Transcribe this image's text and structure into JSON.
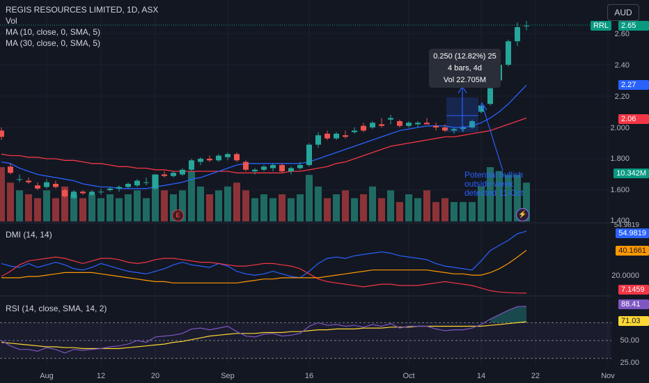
{
  "header": {
    "symbol_line": "REGIS RESOURCES LIMITED, 1D, ASX",
    "vol_label": "Vol",
    "ma10_label": "MA (10, close, 0, SMA, 5)",
    "ma30_label": "MA (30, close, 0, SMA, 5)",
    "currency": "AUD"
  },
  "colors": {
    "up": "#26a69a",
    "down": "#ef5350",
    "ma10": "#2962ff",
    "ma30": "#f23645",
    "adx": "#ff9800",
    "rsi": "#7e57c2",
    "rsi_ma": "#fdd835",
    "background": "#131722",
    "grid": "#1e222d"
  },
  "tags": {
    "rrl": "RRL",
    "last_price": "2.65",
    "ma10_value": "2.27",
    "ma30_value": "2.06",
    "vol_value": "10.342M",
    "dmi_plus": "54.9819",
    "adx_value": "40.1661",
    "dmi_minus": "7.1459",
    "rsi_value": "88.41",
    "rsi_ma_value": "71.03"
  },
  "price_axis": [
    "2.60",
    "2.40",
    "2.20",
    "2.000",
    "1.800",
    "1.600",
    "1.400"
  ],
  "dmi_pane": {
    "title": "DMI (14, 14)",
    "axis": [
      "54.9819",
      "20.0000"
    ],
    "top_label": "54.9819"
  },
  "rsi_pane": {
    "title": "RSI (14, close, SMA, 14, 2)",
    "axis": [
      "50.00",
      "25.00"
    ]
  },
  "x_labels": [
    {
      "text": "Aug",
      "idx": 5
    },
    {
      "text": "12",
      "idx": 11
    },
    {
      "text": "20",
      "idx": 17
    },
    {
      "text": "Sep",
      "idx": 25
    },
    {
      "text": "16",
      "idx": 34
    },
    {
      "text": "Oct",
      "idx": 45
    },
    {
      "text": "14",
      "idx": 53
    },
    {
      "text": "22",
      "idx": 59
    },
    {
      "text": "Nov",
      "idx": 67
    }
  ],
  "tooltip": {
    "line1": "0.250 (12.82%) 25",
    "line2": "4 bars, 4d",
    "line3": "Vol 22.705M"
  },
  "annotation": {
    "line1": "Potential bullish",
    "line2": "outside week",
    "line3": "detected 11-Oct"
  },
  "earnings_badge": "E",
  "chart_data": [
    {
      "type": "candlestick",
      "title": "REGIS RESOURCES LIMITED, 1D, ASX",
      "ylim": [
        1.4,
        2.7
      ],
      "candles": [
        {
          "o": 1.98,
          "h": 2.0,
          "l": 1.92,
          "c": 1.94
        },
        {
          "o": 1.75,
          "h": 1.77,
          "l": 1.7,
          "c": 1.71
        },
        {
          "o": 1.67,
          "h": 1.7,
          "l": 1.65,
          "c": 1.67
        },
        {
          "o": 1.66,
          "h": 1.68,
          "l": 1.64,
          "c": 1.65
        },
        {
          "o": 1.63,
          "h": 1.65,
          "l": 1.6,
          "c": 1.61
        },
        {
          "o": 1.62,
          "h": 1.67,
          "l": 1.61,
          "c": 1.65
        },
        {
          "o": 1.64,
          "h": 1.66,
          "l": 1.61,
          "c": 1.62
        },
        {
          "o": 1.6,
          "h": 1.61,
          "l": 1.55,
          "c": 1.56
        },
        {
          "o": 1.55,
          "h": 1.6,
          "l": 1.54,
          "c": 1.59
        },
        {
          "o": 1.59,
          "h": 1.6,
          "l": 1.57,
          "c": 1.58
        },
        {
          "o": 1.57,
          "h": 1.6,
          "l": 1.56,
          "c": 1.59
        },
        {
          "o": 1.59,
          "h": 1.61,
          "l": 1.57,
          "c": 1.59
        },
        {
          "o": 1.6,
          "h": 1.62,
          "l": 1.59,
          "c": 1.61
        },
        {
          "o": 1.61,
          "h": 1.63,
          "l": 1.59,
          "c": 1.62
        },
        {
          "o": 1.62,
          "h": 1.65,
          "l": 1.61,
          "c": 1.64
        },
        {
          "o": 1.63,
          "h": 1.67,
          "l": 1.62,
          "c": 1.66
        },
        {
          "o": 1.65,
          "h": 1.68,
          "l": 1.63,
          "c": 1.65
        },
        {
          "o": 1.61,
          "h": 1.7,
          "l": 1.6,
          "c": 1.7
        },
        {
          "o": 1.7,
          "h": 1.72,
          "l": 1.68,
          "c": 1.69
        },
        {
          "o": 1.69,
          "h": 1.72,
          "l": 1.68,
          "c": 1.71
        },
        {
          "o": 1.7,
          "h": 1.74,
          "l": 1.69,
          "c": 1.73
        },
        {
          "o": 1.73,
          "h": 1.8,
          "l": 1.72,
          "c": 1.79
        },
        {
          "o": 1.78,
          "h": 1.81,
          "l": 1.76,
          "c": 1.8
        },
        {
          "o": 1.8,
          "h": 1.82,
          "l": 1.78,
          "c": 1.79
        },
        {
          "o": 1.79,
          "h": 1.83,
          "l": 1.78,
          "c": 1.82
        },
        {
          "o": 1.81,
          "h": 1.84,
          "l": 1.79,
          "c": 1.83
        },
        {
          "o": 1.83,
          "h": 1.84,
          "l": 1.78,
          "c": 1.79
        },
        {
          "o": 1.78,
          "h": 1.79,
          "l": 1.72,
          "c": 1.73
        },
        {
          "o": 1.72,
          "h": 1.74,
          "l": 1.7,
          "c": 1.73
        },
        {
          "o": 1.73,
          "h": 1.76,
          "l": 1.72,
          "c": 1.75
        },
        {
          "o": 1.74,
          "h": 1.77,
          "l": 1.72,
          "c": 1.76
        },
        {
          "o": 1.76,
          "h": 1.77,
          "l": 1.71,
          "c": 1.72
        },
        {
          "o": 1.72,
          "h": 1.75,
          "l": 1.7,
          "c": 1.74
        },
        {
          "o": 1.74,
          "h": 1.78,
          "l": 1.73,
          "c": 1.76
        },
        {
          "o": 1.76,
          "h": 1.9,
          "l": 1.75,
          "c": 1.89
        },
        {
          "o": 1.89,
          "h": 1.97,
          "l": 1.87,
          "c": 1.95
        },
        {
          "o": 1.96,
          "h": 1.98,
          "l": 1.92,
          "c": 1.93
        },
        {
          "o": 1.93,
          "h": 1.97,
          "l": 1.92,
          "c": 1.96
        },
        {
          "o": 1.95,
          "h": 1.98,
          "l": 1.93,
          "c": 1.94
        },
        {
          "o": 1.97,
          "h": 2.0,
          "l": 1.96,
          "c": 1.98
        },
        {
          "o": 2.01,
          "h": 2.03,
          "l": 1.97,
          "c": 1.98
        },
        {
          "o": 2.0,
          "h": 2.04,
          "l": 1.99,
          "c": 2.03
        },
        {
          "o": 2.02,
          "h": 2.06,
          "l": 2.0,
          "c": 2.01
        },
        {
          "o": 2.05,
          "h": 2.08,
          "l": 2.02,
          "c": 2.06
        },
        {
          "o": 2.04,
          "h": 2.05,
          "l": 2.0,
          "c": 2.01
        },
        {
          "o": 2.01,
          "h": 2.04,
          "l": 2.0,
          "c": 2.03
        },
        {
          "o": 2.02,
          "h": 2.04,
          "l": 2.0,
          "c": 2.03
        },
        {
          "o": 2.03,
          "h": 2.06,
          "l": 2.02,
          "c": 2.02
        },
        {
          "o": 2.01,
          "h": 2.03,
          "l": 1.98,
          "c": 2.0
        },
        {
          "o": 2.0,
          "h": 2.02,
          "l": 1.97,
          "c": 1.98
        },
        {
          "o": 1.98,
          "h": 2.0,
          "l": 1.96,
          "c": 1.99
        },
        {
          "o": 1.99,
          "h": 2.01,
          "l": 1.97,
          "c": 2.0
        },
        {
          "o": 2.0,
          "h": 2.05,
          "l": 1.99,
          "c": 2.04
        },
        {
          "o": 2.1,
          "h": 2.15,
          "l": 2.09,
          "c": 2.14
        },
        {
          "o": 2.15,
          "h": 2.26,
          "l": 2.14,
          "c": 2.25
        },
        {
          "o": 2.3,
          "h": 2.42,
          "l": 2.29,
          "c": 2.4
        },
        {
          "o": 2.4,
          "h": 2.56,
          "l": 2.39,
          "c": 2.55
        },
        {
          "o": 2.55,
          "h": 2.67,
          "l": 2.52,
          "c": 2.64
        },
        {
          "o": 2.65,
          "h": 2.68,
          "l": 2.62,
          "c": 2.65
        }
      ],
      "ma10": [
        1.78,
        1.77,
        1.74,
        1.72,
        1.7,
        1.69,
        1.68,
        1.67,
        1.66,
        1.64,
        1.63,
        1.62,
        1.62,
        1.61,
        1.61,
        1.61,
        1.61,
        1.62,
        1.63,
        1.64,
        1.65,
        1.67,
        1.68,
        1.7,
        1.72,
        1.74,
        1.76,
        1.77,
        1.77,
        1.77,
        1.77,
        1.77,
        1.77,
        1.77,
        1.78,
        1.8,
        1.82,
        1.84,
        1.86,
        1.88,
        1.9,
        1.92,
        1.94,
        1.96,
        1.98,
        1.99,
        2.0,
        2.01,
        2.01,
        2.01,
        2.0,
        2.0,
        2.01,
        2.03,
        2.06,
        2.1,
        2.15,
        2.21,
        2.27
      ],
      "ma30": [
        1.83,
        1.82,
        1.82,
        1.81,
        1.81,
        1.8,
        1.8,
        1.79,
        1.79,
        1.78,
        1.77,
        1.77,
        1.76,
        1.75,
        1.75,
        1.74,
        1.74,
        1.73,
        1.73,
        1.72,
        1.72,
        1.72,
        1.72,
        1.72,
        1.72,
        1.72,
        1.71,
        1.71,
        1.71,
        1.71,
        1.71,
        1.71,
        1.72,
        1.72,
        1.73,
        1.74,
        1.75,
        1.77,
        1.78,
        1.8,
        1.82,
        1.84,
        1.86,
        1.88,
        1.89,
        1.9,
        1.91,
        1.92,
        1.93,
        1.94,
        1.94,
        1.95,
        1.96,
        1.97,
        1.98,
        2.0,
        2.02,
        2.04,
        2.06
      ]
    },
    {
      "type": "bar",
      "title": "Vol",
      "values": [
        14,
        10,
        8,
        7,
        6,
        8,
        6,
        9,
        7,
        6,
        7,
        6,
        7,
        6,
        7,
        8,
        6,
        12,
        8,
        7,
        8,
        13,
        9,
        7,
        8,
        9,
        10,
        8,
        6,
        7,
        6,
        7,
        6,
        7,
        12,
        9,
        6,
        7,
        8,
        6,
        7,
        9,
        6,
        8,
        5,
        7,
        6,
        8,
        5,
        6,
        5,
        5,
        5,
        9,
        14,
        13,
        12,
        12,
        10
      ]
    },
    {
      "type": "line",
      "title": "DMI (14, 14)",
      "series": [
        {
          "name": "+DI",
          "values": [
            30,
            28,
            27,
            30,
            27,
            29,
            31,
            29,
            26,
            25,
            27,
            30,
            28,
            26,
            24,
            23,
            22,
            24,
            26,
            29,
            31,
            29,
            28,
            27,
            30,
            28,
            24,
            22,
            21,
            22,
            24,
            22,
            20,
            19,
            24,
            30,
            34,
            35,
            34,
            36,
            37,
            38,
            39,
            38,
            36,
            35,
            34,
            33,
            30,
            28,
            27,
            26,
            25,
            32,
            40,
            44,
            48,
            53,
            54.98
          ]
        },
        {
          "name": "-DI",
          "values": [
            20,
            24,
            29,
            32,
            33,
            34,
            35,
            34,
            32,
            30,
            32,
            34,
            34,
            33,
            31,
            30,
            31,
            33,
            34,
            34,
            33,
            32,
            31,
            31,
            30,
            29,
            28,
            28,
            29,
            30,
            30,
            29,
            28,
            26,
            22,
            18,
            16,
            15,
            14,
            13,
            12,
            13,
            14,
            14,
            13,
            13,
            13,
            14,
            15,
            16,
            15,
            14,
            13,
            11,
            9,
            8,
            7.5,
            7.2,
            7.15
          ]
        },
        {
          "name": "ADX",
          "values": [
            19,
            19,
            19,
            20,
            20,
            21,
            22,
            23,
            23,
            23,
            23,
            22,
            21,
            20,
            19,
            18,
            17,
            16,
            16,
            15,
            15,
            15,
            15,
            15,
            15,
            15,
            15,
            16,
            17,
            18,
            18,
            19,
            19,
            19,
            19,
            19,
            20,
            21,
            22,
            23,
            24,
            25,
            25,
            25,
            25,
            25,
            25,
            25,
            24,
            23,
            22,
            22,
            21,
            21,
            23,
            26,
            30,
            35,
            40.17
          ]
        }
      ]
    },
    {
      "type": "line",
      "title": "RSI (14, close, SMA, 14, 2)",
      "series": [
        {
          "name": "RSI",
          "values": [
            50,
            44,
            40,
            40,
            38,
            42,
            40,
            36,
            40,
            39,
            40,
            41,
            43,
            44,
            46,
            50,
            48,
            54,
            55,
            56,
            58,
            63,
            64,
            62,
            64,
            66,
            60,
            55,
            54,
            57,
            58,
            55,
            56,
            58,
            66,
            70,
            67,
            68,
            66,
            67,
            65,
            68,
            66,
            69,
            64,
            66,
            66,
            66,
            63,
            61,
            62,
            62,
            64,
            68,
            74,
            79,
            84,
            88,
            88.41
          ]
        },
        {
          "name": "RSI-based MA",
          "values": [
            48,
            47,
            46,
            45,
            44,
            43,
            43,
            42,
            42,
            41,
            41,
            41,
            41,
            41,
            42,
            43,
            44,
            45,
            46,
            48,
            49,
            51,
            53,
            55,
            56,
            57,
            58,
            58,
            58,
            59,
            59,
            59,
            60,
            60,
            61,
            62,
            62,
            63,
            63,
            63,
            64,
            64,
            64,
            65,
            65,
            65,
            66,
            66,
            66,
            66,
            66,
            66,
            66,
            66,
            67,
            68,
            69,
            70,
            71.03
          ]
        }
      ],
      "ylim": [
        25,
        100
      ]
    }
  ]
}
